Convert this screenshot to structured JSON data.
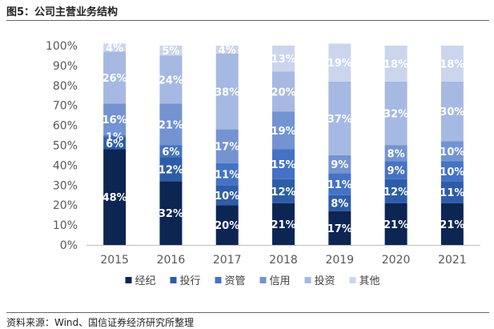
{
  "figure": {
    "title": "图5：公司主营业务结构",
    "source": "资料来源：Wind、国信证券经济研究所整理"
  },
  "chart_data": {
    "type": "bar",
    "stacked": true,
    "categories": [
      "2015",
      "2016",
      "2017",
      "2018",
      "2019",
      "2020",
      "2021"
    ],
    "ylim": [
      0,
      100
    ],
    "yticks": [
      "0%",
      "10%",
      "20%",
      "30%",
      "40%",
      "50%",
      "60%",
      "70%",
      "80%",
      "90%",
      "100%"
    ],
    "grid": false,
    "legend_position": "bottom",
    "series": [
      {
        "name": "经纪",
        "color": "#0d2553",
        "label_color": "#ffffff",
        "values": [
          48,
          32,
          20,
          21,
          17,
          21,
          21
        ],
        "labels": [
          "48%",
          "32%",
          "20%",
          "21%",
          "17%",
          "21%",
          "21%"
        ]
      },
      {
        "name": "投行",
        "color": "#2e5da8",
        "label_color": "#ffffff",
        "values": [
          6,
          12,
          10,
          12,
          8,
          12,
          11
        ],
        "labels": [
          "6%",
          "12%",
          "10%",
          "12%",
          "8%",
          "12%",
          "11%"
        ]
      },
      {
        "name": "资管",
        "color": "#4572c4",
        "label_color": "#ffffff",
        "values": [
          1,
          6,
          11,
          15,
          11,
          9,
          10
        ],
        "labels": [
          "1%",
          "6%",
          "11%",
          "15%",
          "11%",
          "9%",
          "10%"
        ]
      },
      {
        "name": "信用",
        "color": "#7493d1",
        "label_color": "#ffffff",
        "values": [
          16,
          21,
          17,
          19,
          9,
          8,
          10
        ],
        "labels": [
          "16%",
          "21%",
          "17%",
          "19%",
          "9%",
          "8%",
          "10%"
        ]
      },
      {
        "name": "投资",
        "color": "#a6b9e2",
        "label_color": "#ffffff",
        "values": [
          26,
          24,
          38,
          20,
          37,
          32,
          30
        ],
        "labels": [
          "26%",
          "24%",
          "38%",
          "20%",
          "37%",
          "32%",
          "30%"
        ]
      },
      {
        "name": "其他",
        "color": "#cbd5ec",
        "label_color": "#ffffff",
        "values": [
          4,
          5,
          4,
          13,
          19,
          18,
          18
        ],
        "labels": [
          "4%",
          "5%",
          "4%",
          "13%",
          "19%",
          "18%",
          "18%"
        ]
      }
    ]
  }
}
